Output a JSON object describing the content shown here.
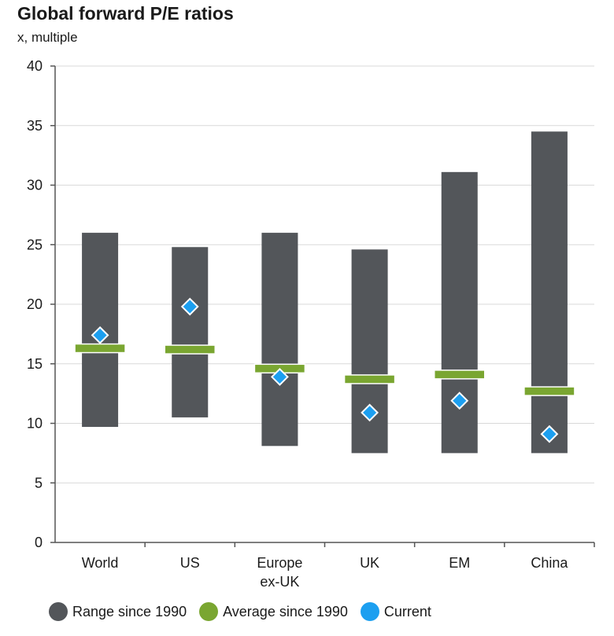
{
  "chart_data": {
    "type": "range",
    "title": "Global forward P/E ratios",
    "subtitle": "x, multiple",
    "ylim": [
      0,
      40
    ],
    "yticks": [
      0,
      5,
      10,
      15,
      20,
      25,
      30,
      35,
      40
    ],
    "grid": true,
    "categories": [
      {
        "lines": [
          "World"
        ],
        "min": 9.7,
        "max": 26.0,
        "average": 16.3,
        "current": 17.4
      },
      {
        "lines": [
          "US"
        ],
        "min": 10.5,
        "max": 24.8,
        "average": 16.2,
        "current": 19.8
      },
      {
        "lines": [
          "Europe",
          "ex-UK"
        ],
        "min": 8.1,
        "max": 26.0,
        "average": 14.6,
        "current": 13.9
      },
      {
        "lines": [
          "UK"
        ],
        "min": 7.5,
        "max": 24.6,
        "average": 13.7,
        "current": 10.9
      },
      {
        "lines": [
          "EM"
        ],
        "min": 7.5,
        "max": 31.1,
        "average": 14.1,
        "current": 11.9
      },
      {
        "lines": [
          "China"
        ],
        "min": 7.5,
        "max": 34.5,
        "average": 12.7,
        "current": 9.1
      }
    ],
    "series": [
      {
        "name": "Range since 1990",
        "color": "#53565a"
      },
      {
        "name": "Average since 1990",
        "color": "#7aa631"
      },
      {
        "name": "Current",
        "color": "#1c9ff0"
      }
    ],
    "legend_position": "bottom"
  }
}
